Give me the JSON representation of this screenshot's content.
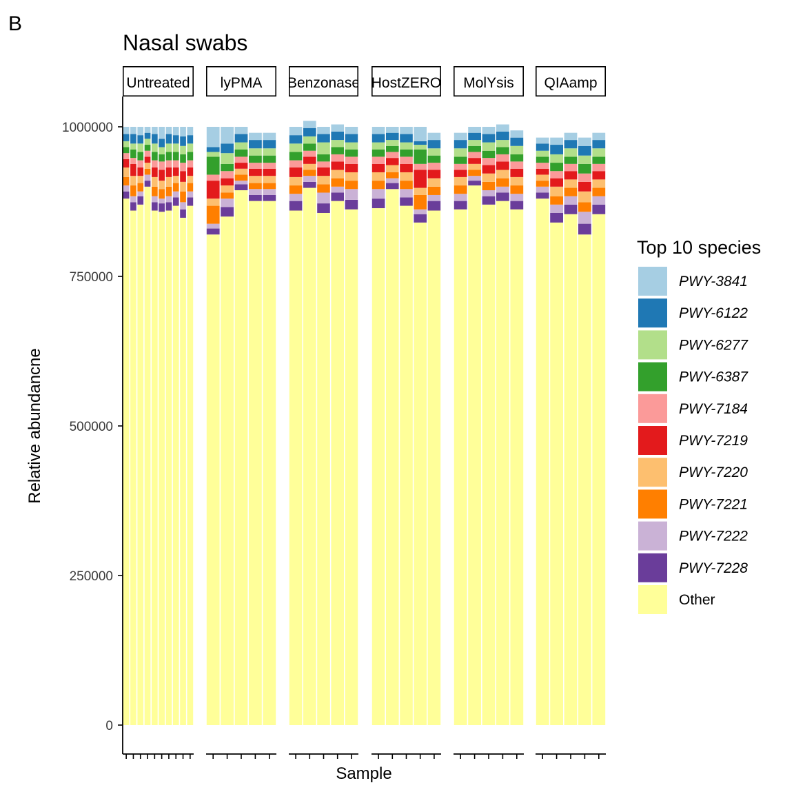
{
  "panel_letter": "B",
  "chart_data": {
    "type": "bar",
    "stacked": true,
    "title": "Nasal swabs",
    "xlabel": "Sample",
    "ylabel": "Relative abundancne",
    "ylim": [
      0,
      1050000
    ],
    "yticks": [
      0,
      250000,
      500000,
      750000,
      1000000
    ],
    "ytick_labels": [
      "0",
      "250000",
      "500000",
      "750000",
      "1000000"
    ],
    "legend": {
      "title": "Top 10 species",
      "position": "right"
    },
    "series": [
      {
        "name": "PWY-3841",
        "color": "#a6cee3",
        "italic": true
      },
      {
        "name": "PWY-6122",
        "color": "#1f78b4",
        "italic": true
      },
      {
        "name": "PWY-6277",
        "color": "#b2df8a",
        "italic": true
      },
      {
        "name": "PWY-6387",
        "color": "#33a02c",
        "italic": true
      },
      {
        "name": "PWY-7184",
        "color": "#fb9a99",
        "italic": true
      },
      {
        "name": "PWY-7219",
        "color": "#e31a1c",
        "italic": true
      },
      {
        "name": "PWY-7220",
        "color": "#fdbf6f",
        "italic": true
      },
      {
        "name": "PWY-7221",
        "color": "#ff7f00",
        "italic": true
      },
      {
        "name": "PWY-7222",
        "color": "#cab2d6",
        "italic": true
      },
      {
        "name": "PWY-7228",
        "color": "#6a3d9a",
        "italic": true
      },
      {
        "name": "Other",
        "color": "#ffff99",
        "italic": false
      }
    ],
    "facets": [
      {
        "label": "Untreated",
        "samples": [
          [
            12000,
            12000,
            10000,
            10000,
            10000,
            14000,
            16000,
            14000,
            10000,
            12000,
            880000
          ],
          [
            12000,
            16000,
            10000,
            14000,
            10000,
            20000,
            16000,
            18000,
            10000,
            14000,
            860000
          ],
          [
            14000,
            14000,
            14000,
            14000,
            12000,
            14000,
            12000,
            14000,
            8000,
            14000,
            870000
          ],
          [
            10000,
            10000,
            10000,
            10000,
            10000,
            10000,
            10000,
            10000,
            10000,
            10000,
            900000
          ],
          [
            12000,
            16000,
            14000,
            14000,
            12000,
            16000,
            16000,
            16000,
            10000,
            14000,
            860000
          ],
          [
            20000,
            14000,
            12000,
            12000,
            14000,
            18000,
            14000,
            16000,
            8000,
            14000,
            858000
          ],
          [
            12000,
            16000,
            14000,
            14000,
            12000,
            16000,
            16000,
            16000,
            10000,
            14000,
            860000
          ],
          [
            14000,
            14000,
            14000,
            14000,
            12000,
            14000,
            12000,
            14000,
            10000,
            14000,
            868000
          ],
          [
            16000,
            16000,
            14000,
            14000,
            14000,
            18000,
            16000,
            18000,
            12000,
            14000,
            848000
          ],
          [
            14000,
            14000,
            14000,
            14000,
            12000,
            14000,
            12000,
            14000,
            10000,
            14000,
            868000
          ]
        ]
      },
      {
        "label": "lyPMA",
        "samples": [
          [
            34000,
            8000,
            8000,
            30000,
            10000,
            30000,
            12000,
            30000,
            8000,
            10000,
            820000
          ],
          [
            28000,
            16000,
            18000,
            12000,
            12000,
            12000,
            12000,
            10000,
            14000,
            16000,
            850000
          ],
          [
            12000,
            14000,
            12000,
            12000,
            10000,
            10000,
            10000,
            10000,
            6000,
            10000,
            894000
          ],
          [
            12000,
            14000,
            12000,
            12000,
            10000,
            12000,
            12000,
            10000,
            10000,
            10000,
            876000
          ],
          [
            12000,
            14000,
            12000,
            12000,
            10000,
            12000,
            12000,
            10000,
            10000,
            10000,
            876000
          ]
        ]
      },
      {
        "label": "Benzonase",
        "samples": [
          [
            14000,
            14000,
            14000,
            14000,
            12000,
            16000,
            14000,
            14000,
            12000,
            16000,
            860000
          ],
          [
            12000,
            14000,
            12000,
            12000,
            10000,
            12000,
            10000,
            10000,
            10000,
            10000,
            898000
          ],
          [
            12000,
            14000,
            20000,
            12000,
            10000,
            14000,
            14000,
            14000,
            18000,
            16000,
            856000
          ],
          [
            12000,
            14000,
            12000,
            12000,
            12000,
            14000,
            14000,
            14000,
            10000,
            14000,
            876000
          ],
          [
            12000,
            14000,
            12000,
            12000,
            12000,
            14000,
            14000,
            14000,
            18000,
            16000,
            862000
          ]
        ]
      },
      {
        "label": "HostZERO",
        "samples": [
          [
            12000,
            14000,
            12000,
            12000,
            12000,
            14000,
            14000,
            14000,
            16000,
            16000,
            864000
          ],
          [
            10000,
            12000,
            10000,
            10000,
            10000,
            12000,
            12000,
            10000,
            8000,
            10000,
            896000
          ],
          [
            12000,
            14000,
            12000,
            12000,
            12000,
            14000,
            14000,
            14000,
            14000,
            14000,
            868000
          ],
          [
            24000,
            6000,
            8000,
            24000,
            10000,
            30000,
            12000,
            24000,
            8000,
            14000,
            840000
          ],
          [
            12000,
            14000,
            12000,
            12000,
            12000,
            14000,
            14000,
            14000,
            10000,
            16000,
            860000
          ]
        ]
      },
      {
        "label": "MolYsis",
        "samples": [
          [
            12000,
            14000,
            14000,
            12000,
            10000,
            12000,
            14000,
            14000,
            12000,
            14000,
            862000
          ],
          [
            10000,
            12000,
            10000,
            10000,
            10000,
            10000,
            10000,
            10000,
            8000,
            8000,
            902000
          ],
          [
            12000,
            14000,
            14000,
            12000,
            12000,
            14000,
            14000,
            14000,
            10000,
            14000,
            870000
          ],
          [
            12000,
            14000,
            12000,
            12000,
            12000,
            14000,
            14000,
            14000,
            10000,
            14000,
            876000
          ],
          [
            12000,
            14000,
            14000,
            12000,
            12000,
            14000,
            14000,
            14000,
            12000,
            14000,
            862000
          ]
        ]
      },
      {
        "label": "QIAamp",
        "samples": [
          [
            10000,
            12000,
            10000,
            10000,
            10000,
            10000,
            10000,
            10000,
            10000,
            10000,
            880000
          ],
          [
            12000,
            16000,
            14000,
            14000,
            12000,
            14000,
            16000,
            14000,
            14000,
            16000,
            840000
          ],
          [
            12000,
            14000,
            14000,
            12000,
            12000,
            14000,
            14000,
            14000,
            14000,
            16000,
            854000
          ],
          [
            14000,
            16000,
            14000,
            16000,
            14000,
            16000,
            18000,
            16000,
            20000,
            18000,
            820000
          ],
          [
            12000,
            14000,
            14000,
            12000,
            12000,
            14000,
            14000,
            14000,
            14000,
            16000,
            854000
          ]
        ]
      }
    ]
  }
}
